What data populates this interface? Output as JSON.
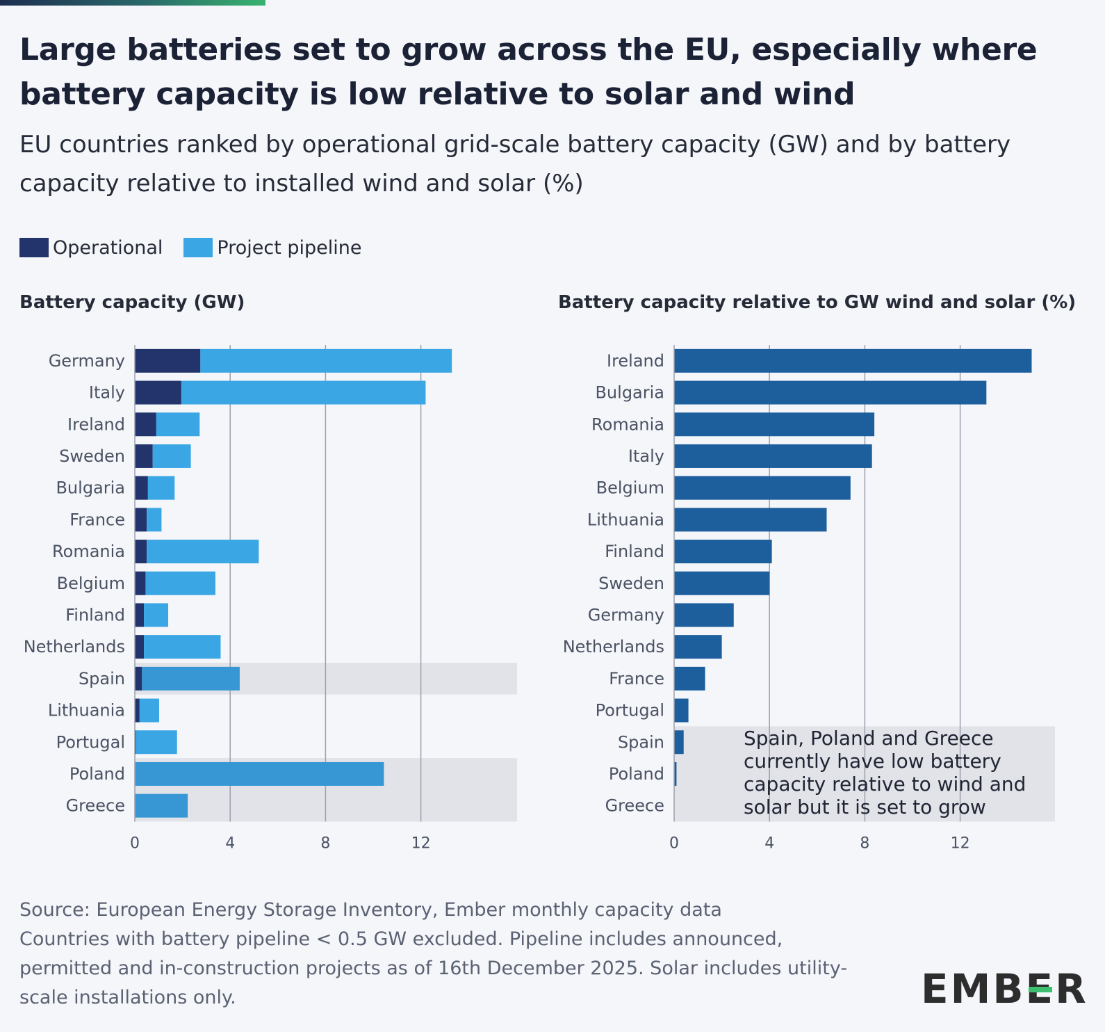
{
  "title": "Large batteries set to grow across the EU, especially where battery capacity is low relative to solar and wind",
  "subtitle": "EU countries ranked by operational grid-scale battery capacity (GW) and by battery capacity relative to installed wind and solar (%)",
  "legend": {
    "operational": "Operational",
    "pipeline": "Project pipeline"
  },
  "colors": {
    "operational": "#22346b",
    "pipeline": "#3ba6e4",
    "pipeline_highlight": "#3697d4",
    "relative": "#1d5e9d",
    "highlight_band": "#e2e3e8",
    "gridline": "#9aa0ad",
    "accent_green": "#3cc06f"
  },
  "annotation": "Spain, Poland and Greece currently have low battery capacity relative to wind and solar but it is set to grow",
  "source": {
    "line1": "Source: European Energy Storage Inventory, Ember monthly capacity data",
    "line2": "Countries with battery pipeline < 0.5 GW excluded. Pipeline includes announced, permitted and in-construction projects as of 16th December 2025. Solar includes utility-scale installations only."
  },
  "logo": {
    "text_before": "EMB",
    "text_after": "R"
  },
  "chart_data": [
    {
      "type": "bar",
      "stacked": true,
      "orientation": "horizontal",
      "title": "Battery capacity (GW)",
      "categories": [
        "Germany",
        "Italy",
        "Ireland",
        "Sweden",
        "Bulgaria",
        "France",
        "Romania",
        "Belgium",
        "Finland",
        "Netherlands",
        "Spain",
        "Lithuania",
        "Portugal",
        "Poland",
        "Greece"
      ],
      "series": [
        {
          "name": "Operational",
          "values": [
            2.75,
            1.95,
            0.9,
            0.75,
            0.55,
            0.5,
            0.5,
            0.45,
            0.38,
            0.38,
            0.3,
            0.2,
            0.05,
            0.02,
            0.0
          ]
        },
        {
          "name": "Project pipeline",
          "values": [
            10.55,
            10.25,
            1.82,
            1.6,
            1.12,
            0.62,
            4.7,
            2.93,
            1.02,
            3.22,
            4.1,
            0.82,
            1.72,
            10.43,
            2.22
          ]
        }
      ],
      "highlighted": [
        "Spain",
        "Poland",
        "Greece"
      ],
      "xticks": [
        0,
        4,
        8,
        12
      ],
      "xlim": [
        0,
        16
      ]
    },
    {
      "type": "bar",
      "orientation": "horizontal",
      "title": "Battery capacity relative to GW wind and solar (%)",
      "categories": [
        "Ireland",
        "Bulgaria",
        "Romania",
        "Italy",
        "Belgium",
        "Lithuania",
        "Finland",
        "Sweden",
        "Germany",
        "Netherlands",
        "France",
        "Portugal",
        "Spain",
        "Poland",
        "Greece"
      ],
      "values": [
        15.0,
        13.1,
        8.4,
        8.3,
        7.4,
        6.4,
        4.1,
        4.0,
        2.5,
        2.0,
        1.3,
        0.6,
        0.4,
        0.1,
        0.0
      ],
      "highlighted": [
        "Spain",
        "Poland",
        "Greece"
      ],
      "xticks": [
        0,
        4,
        8,
        12
      ],
      "xlim": [
        0,
        16
      ]
    }
  ]
}
